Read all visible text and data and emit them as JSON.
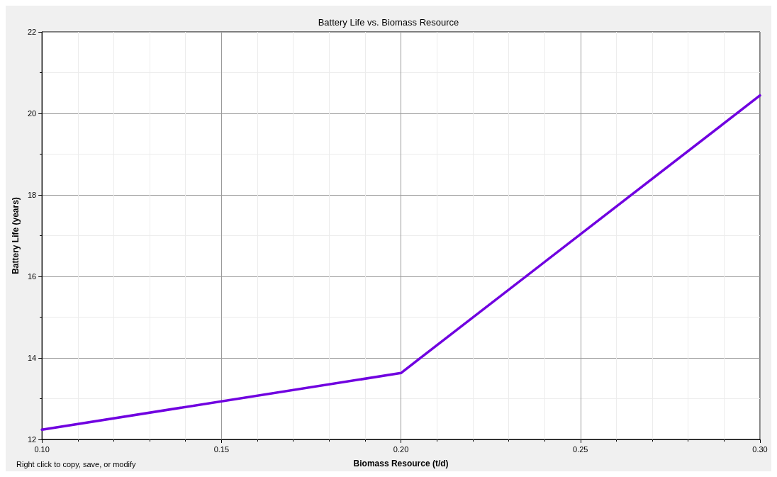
{
  "chart_data": {
    "type": "line",
    "title": "Battery Life vs. Biomass Resource",
    "xlabel": "Biomass Resource (t/d)",
    "ylabel": "Battery Life (years)",
    "annotations": [
      "Right click to copy, save, or modify"
    ],
    "x": [
      0.1,
      0.2,
      0.3
    ],
    "series": [
      {
        "color": "#7000e0",
        "values": [
          12.24,
          13.63,
          20.44
        ]
      }
    ],
    "xlim": [
      0.1,
      0.3
    ],
    "xticks": [
      {
        "value": 0.1,
        "label": "0.10"
      },
      {
        "value": 0.15,
        "label": "0.15"
      },
      {
        "value": 0.2,
        "label": "0.20"
      },
      {
        "value": 0.25,
        "label": "0.25"
      },
      {
        "value": 0.3,
        "label": "0.30"
      }
    ],
    "ylim": [
      12,
      22
    ],
    "yticks": [
      12,
      14,
      16,
      18,
      20,
      22
    ],
    "grid": true,
    "marker": "none",
    "line_style": "solid"
  }
}
